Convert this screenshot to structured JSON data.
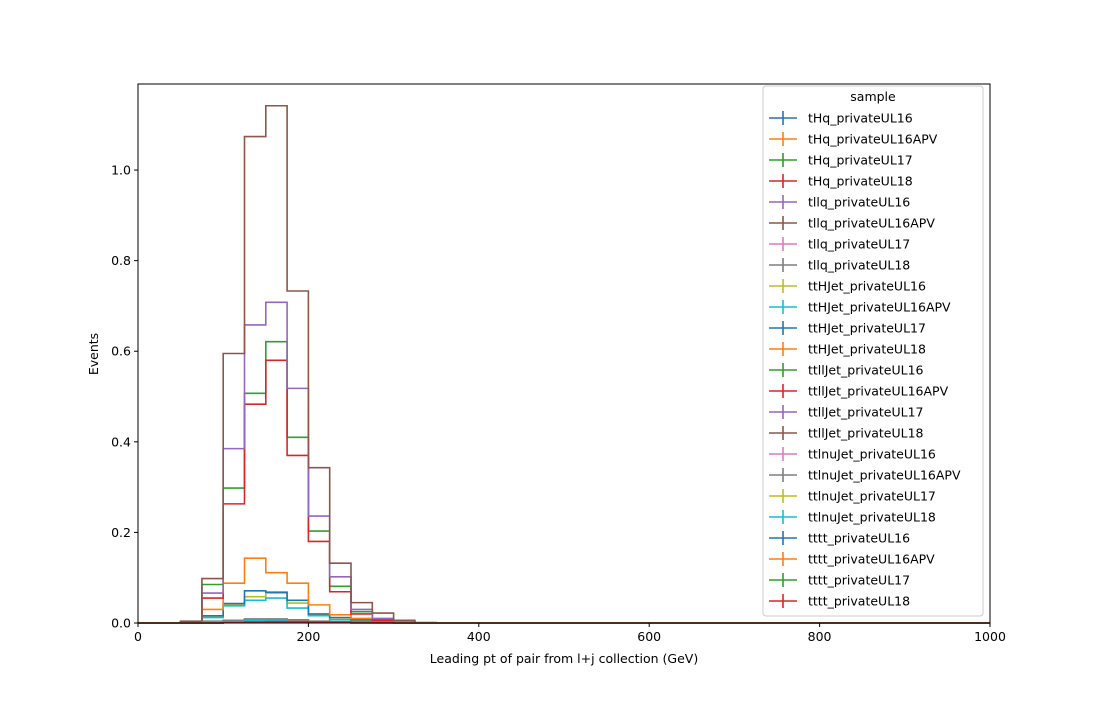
{
  "chart_data": {
    "type": "line",
    "title": "",
    "xlabel": "Leading pt of pair from l+j collection (GeV)",
    "ylabel": "Events",
    "xlim": [
      0,
      1000
    ],
    "ylim": [
      0,
      1.19
    ],
    "x_ticks": [
      0,
      200,
      400,
      600,
      800,
      1000
    ],
    "y_ticks": [
      0.0,
      0.2,
      0.4,
      0.6,
      0.8,
      1.0
    ],
    "x_tick_labels": [
      "0",
      "200",
      "400",
      "600",
      "800",
      "1000"
    ],
    "y_tick_labels": [
      "0.0",
      "0.2",
      "0.4",
      "0.6",
      "0.8",
      "1.0"
    ],
    "grid": false,
    "legend": {
      "title": "sample",
      "placement": "top-right"
    },
    "bin_edges": [
      0,
      25,
      50,
      75,
      100,
      125,
      150,
      175,
      200,
      225,
      250,
      275,
      300,
      325,
      350,
      375,
      400
    ],
    "series": [
      {
        "name": "tHq_privateUL16",
        "color": "#1f77b4",
        "values": [
          0,
          0,
          0,
          0.002,
          0.003,
          0.004,
          0.004,
          0.003,
          0.002,
          0.001,
          0.001,
          0,
          0,
          0,
          0,
          0
        ]
      },
      {
        "name": "tHq_privateUL16APV",
        "color": "#ff7f0e",
        "values": [
          0,
          0,
          0,
          0.002,
          0.003,
          0.004,
          0.004,
          0.003,
          0.002,
          0.001,
          0.001,
          0,
          0,
          0,
          0,
          0
        ]
      },
      {
        "name": "tHq_privateUL17",
        "color": "#2ca02c",
        "values": [
          0,
          0,
          0,
          0.002,
          0.003,
          0.005,
          0.005,
          0.004,
          0.002,
          0.001,
          0.001,
          0,
          0,
          0,
          0,
          0
        ]
      },
      {
        "name": "tHq_privateUL18",
        "color": "#d62728",
        "values": [
          0,
          0,
          0,
          0.003,
          0.004,
          0.006,
          0.006,
          0.005,
          0.003,
          0.002,
          0.001,
          0,
          0,
          0,
          0,
          0
        ]
      },
      {
        "name": "tllq_privateUL16",
        "color": "#9467bd",
        "values": [
          0,
          0,
          0,
          0.003,
          0.005,
          0.007,
          0.007,
          0.005,
          0.003,
          0.002,
          0.001,
          0,
          0,
          0,
          0,
          0
        ]
      },
      {
        "name": "tllq_privateUL16APV",
        "color": "#8c564b",
        "values": [
          0,
          0,
          0,
          0.003,
          0.005,
          0.007,
          0.007,
          0.005,
          0.003,
          0.002,
          0.001,
          0,
          0,
          0,
          0,
          0
        ]
      },
      {
        "name": "tllq_privateUL17",
        "color": "#e377c2",
        "values": [
          0,
          0,
          0,
          0.003,
          0.005,
          0.008,
          0.008,
          0.006,
          0.003,
          0.002,
          0.001,
          0,
          0,
          0,
          0,
          0
        ]
      },
      {
        "name": "tllq_privateUL18",
        "color": "#7f7f7f",
        "values": [
          0,
          0,
          0,
          0.004,
          0.006,
          0.009,
          0.009,
          0.007,
          0.004,
          0.002,
          0.001,
          0,
          0,
          0,
          0,
          0
        ]
      },
      {
        "name": "ttHJet_privateUL16",
        "color": "#bcbd22",
        "values": [
          0,
          0,
          0.001,
          0.013,
          0.04,
          0.058,
          0.066,
          0.044,
          0.018,
          0.008,
          0.004,
          0.002,
          0,
          0,
          0,
          0
        ]
      },
      {
        "name": "ttHJet_privateUL16APV",
        "color": "#17becf",
        "values": [
          0,
          0,
          0.001,
          0.012,
          0.038,
          0.05,
          0.055,
          0.033,
          0.016,
          0.007,
          0.003,
          0.001,
          0,
          0,
          0,
          0
        ]
      },
      {
        "name": "ttHJet_privateUL17",
        "color": "#1f77b4",
        "values": [
          0,
          0,
          0.001,
          0.016,
          0.043,
          0.071,
          0.068,
          0.05,
          0.02,
          0.012,
          0.007,
          0.003,
          0,
          0,
          0,
          0
        ]
      },
      {
        "name": "ttHJet_privateUL18",
        "color": "#ff7f0e",
        "values": [
          0,
          0,
          0.002,
          0.03,
          0.088,
          0.143,
          0.111,
          0.088,
          0.04,
          0.018,
          0.01,
          0.004,
          0.001,
          0,
          0,
          0
        ]
      },
      {
        "name": "ttllJet_privateUL16",
        "color": "#2ca02c",
        "values": [
          0,
          0,
          0.003,
          0.085,
          0.298,
          0.507,
          0.621,
          0.41,
          0.203,
          0.081,
          0.025,
          0.008,
          0.002,
          0,
          0,
          0
        ]
      },
      {
        "name": "ttllJet_privateUL16APV",
        "color": "#d62728",
        "values": [
          0,
          0,
          0.003,
          0.055,
          0.263,
          0.483,
          0.58,
          0.37,
          0.18,
          0.069,
          0.02,
          0.006,
          0.001,
          0,
          0,
          0
        ]
      },
      {
        "name": "ttllJet_privateUL17",
        "color": "#9467bd",
        "values": [
          0,
          0,
          0.003,
          0.066,
          0.385,
          0.658,
          0.708,
          0.518,
          0.236,
          0.102,
          0.03,
          0.01,
          0.002,
          0,
          0,
          0
        ]
      },
      {
        "name": "ttllJet_privateUL18",
        "color": "#8c564b",
        "values": [
          0,
          0,
          0.004,
          0.098,
          0.595,
          1.074,
          1.142,
          0.733,
          0.343,
          0.132,
          0.045,
          0.022,
          0.006,
          0.001,
          0,
          0
        ]
      },
      {
        "name": "ttlnuJet_privateUL16",
        "color": "#e377c2",
        "values": [
          0,
          0,
          0,
          0.001,
          0.002,
          0.003,
          0.003,
          0.002,
          0.001,
          0.001,
          0,
          0,
          0,
          0,
          0,
          0
        ]
      },
      {
        "name": "ttlnuJet_privateUL16APV",
        "color": "#7f7f7f",
        "values": [
          0,
          0,
          0,
          0.001,
          0.002,
          0.003,
          0.003,
          0.002,
          0.001,
          0.001,
          0,
          0,
          0,
          0,
          0,
          0
        ]
      },
      {
        "name": "ttlnuJet_privateUL17",
        "color": "#bcbd22",
        "values": [
          0,
          0,
          0,
          0.001,
          0.002,
          0.004,
          0.004,
          0.003,
          0.001,
          0.001,
          0,
          0,
          0,
          0,
          0,
          0
        ]
      },
      {
        "name": "ttlnuJet_privateUL18",
        "color": "#17becf",
        "values": [
          0,
          0,
          0,
          0.001,
          0.003,
          0.005,
          0.005,
          0.003,
          0.002,
          0.001,
          0,
          0,
          0,
          0,
          0,
          0
        ]
      },
      {
        "name": "tttt_privateUL16",
        "color": "#1f77b4",
        "values": [
          0,
          0,
          0,
          0,
          0.001,
          0.001,
          0.002,
          0.002,
          0.002,
          0.001,
          0.001,
          0.001,
          0,
          0,
          0,
          0
        ]
      },
      {
        "name": "tttt_privateUL16APV",
        "color": "#ff7f0e",
        "values": [
          0,
          0,
          0,
          0,
          0.001,
          0.001,
          0.002,
          0.002,
          0.002,
          0.001,
          0.001,
          0.001,
          0,
          0,
          0,
          0
        ]
      },
      {
        "name": "tttt_privateUL17",
        "color": "#2ca02c",
        "values": [
          0,
          0,
          0,
          0,
          0.001,
          0.002,
          0.002,
          0.002,
          0.002,
          0.001,
          0.001,
          0.001,
          0,
          0,
          0,
          0
        ]
      },
      {
        "name": "tttt_privateUL18",
        "color": "#d62728",
        "values": [
          0,
          0,
          0,
          0,
          0.001,
          0.002,
          0.003,
          0.003,
          0.002,
          0.002,
          0.001,
          0.001,
          0,
          0,
          0,
          0
        ]
      }
    ]
  }
}
